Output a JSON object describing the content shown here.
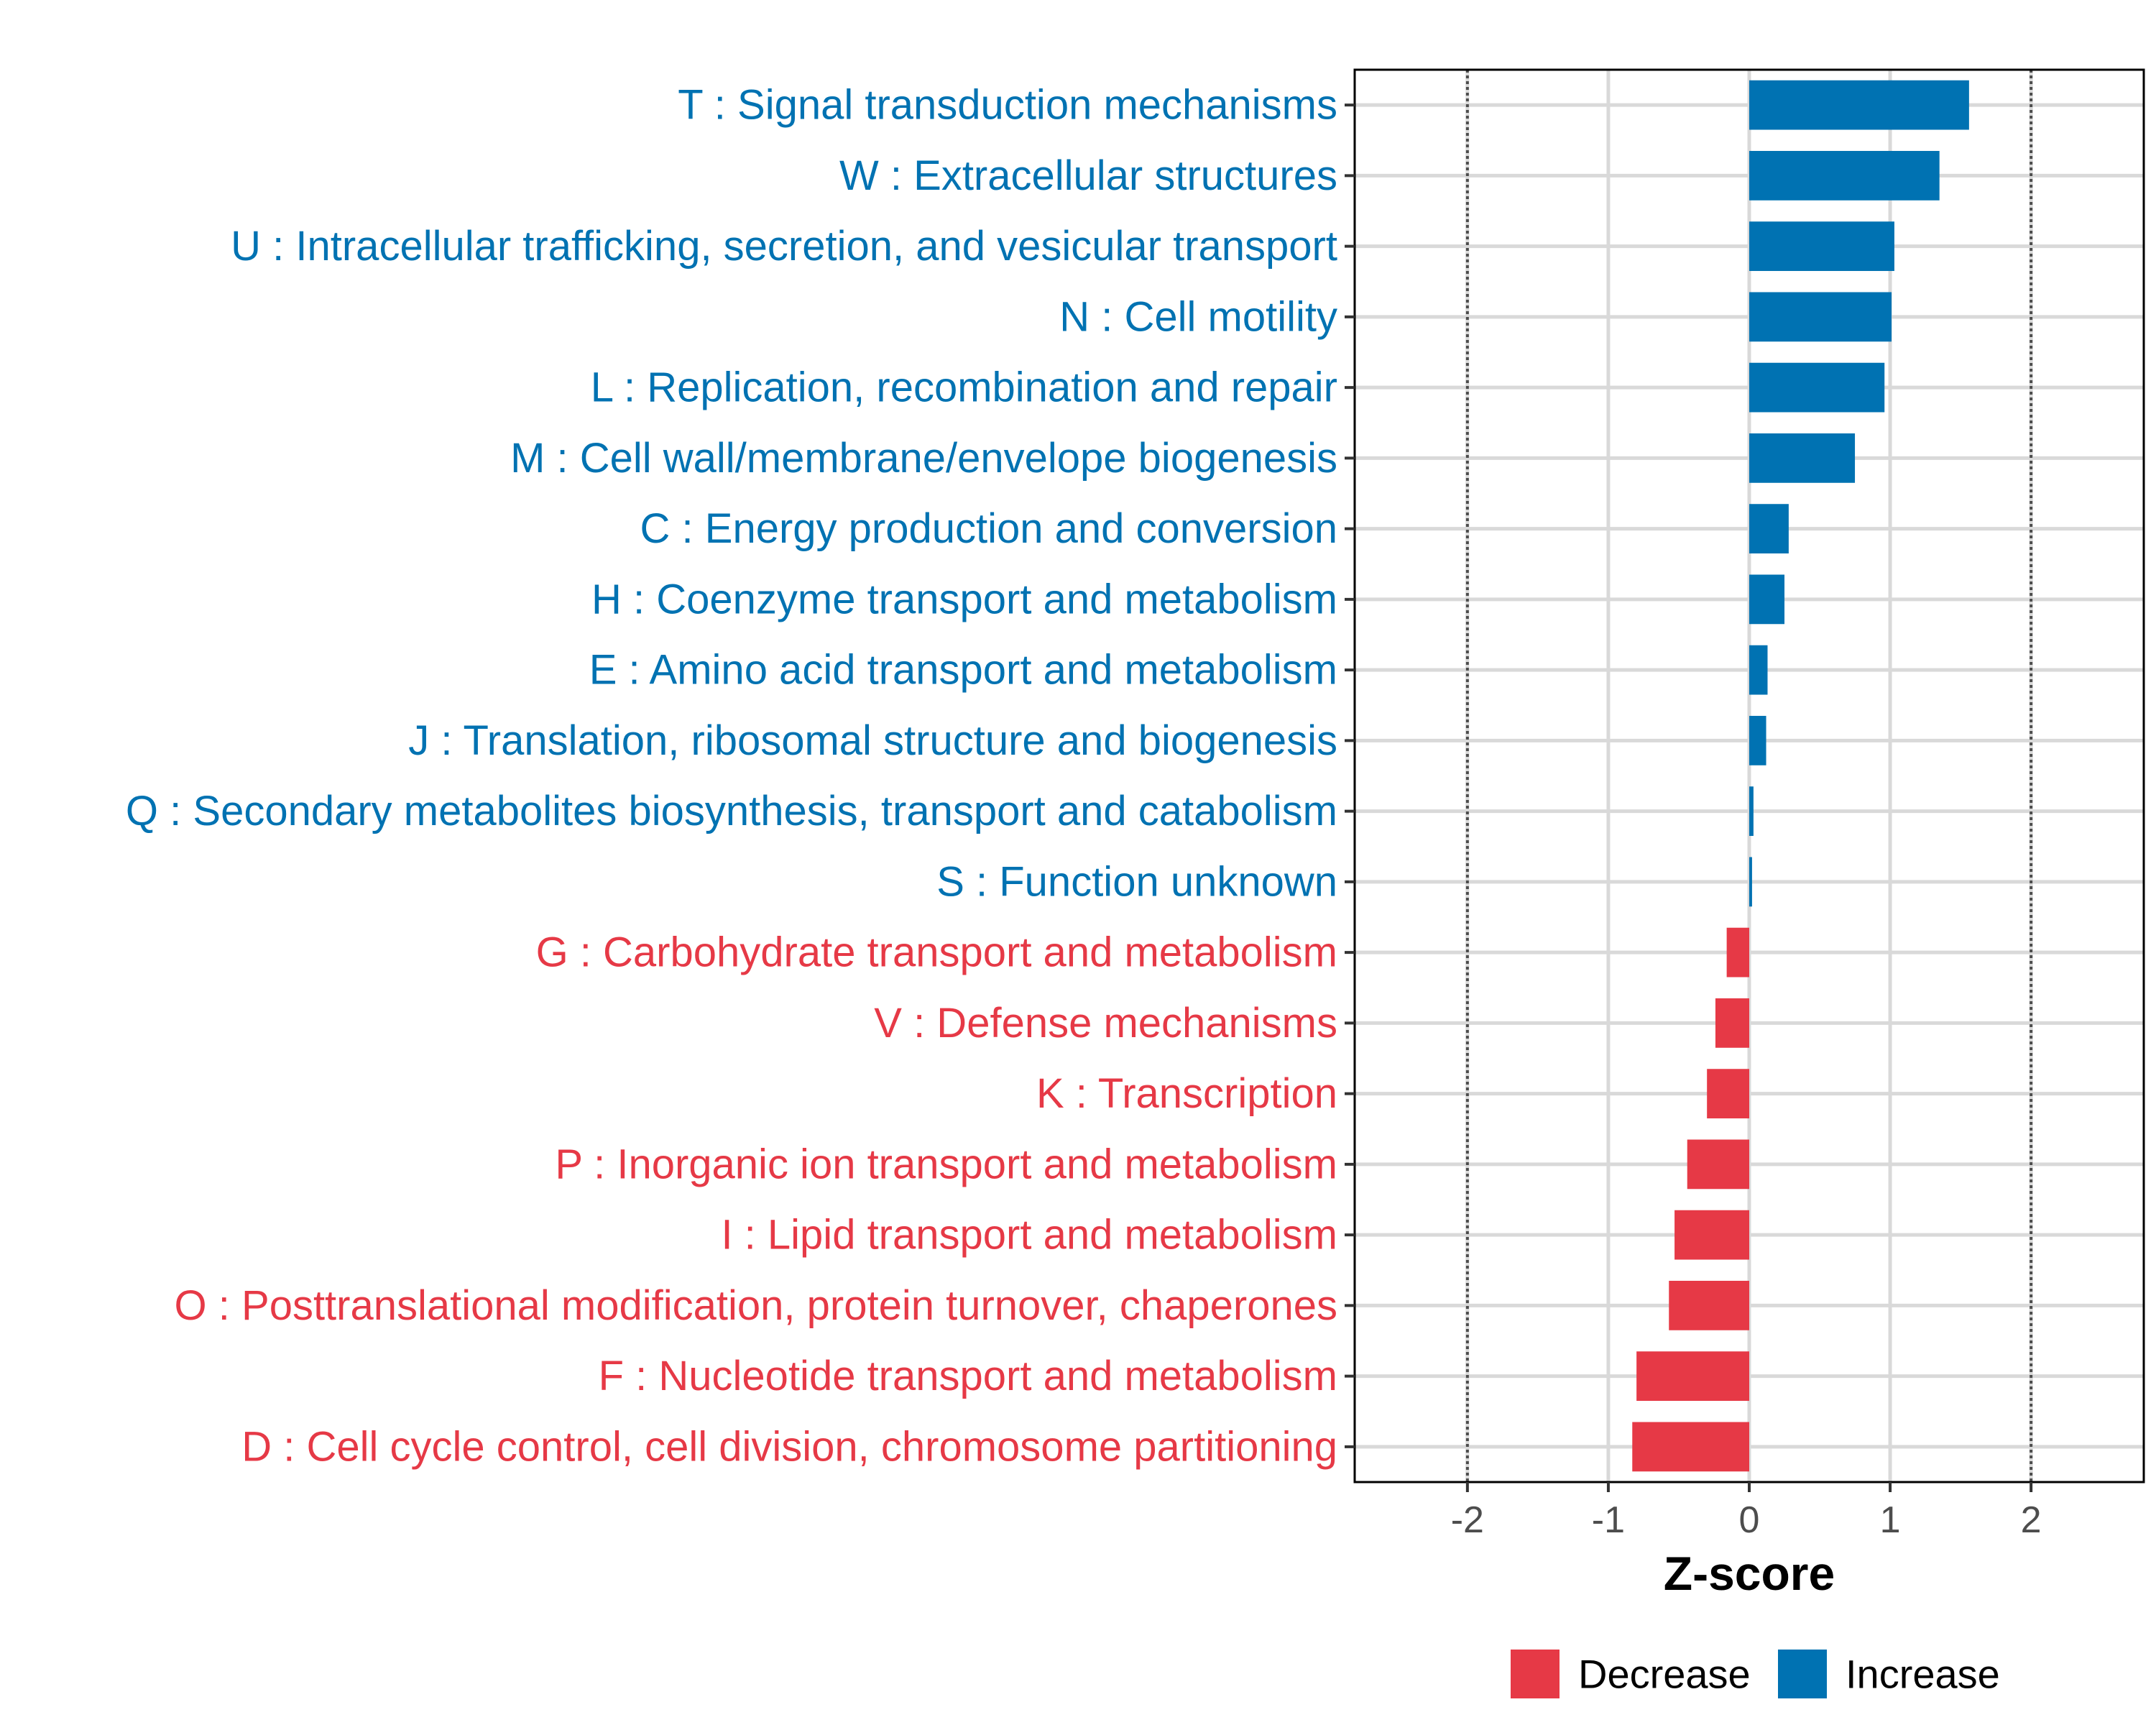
{
  "colors": {
    "increase": "#0072B2",
    "decrease": "#E63946",
    "grid": "#d9d9d9",
    "panel_border": "#000000",
    "threshold_line": "#4d4d4d"
  },
  "chart_data": {
    "type": "bar",
    "orientation": "horizontal",
    "xlabel": "Z-score",
    "xlim": [
      -2.8,
      2.8
    ],
    "x_ticks": [
      -2,
      -1,
      0,
      1,
      2
    ],
    "x_tick_labels": [
      "-2",
      "-1",
      "0",
      "1",
      "2"
    ],
    "threshold_lines": [
      -2,
      2
    ],
    "grid": true,
    "categories": [
      "T : Signal transduction mechanisms",
      "W : Extracellular structures",
      "U : Intracellular trafficking, secretion, and vesicular transport",
      "N : Cell motility",
      "L : Replication, recombination and repair",
      "M : Cell wall/membrane/envelope biogenesis",
      "C : Energy production and conversion",
      "H : Coenzyme transport and metabolism",
      "E : Amino acid transport and metabolism",
      "J : Translation, ribosomal structure and biogenesis",
      "Q : Secondary metabolites biosynthesis, transport and catabolism",
      "S : Function unknown",
      "G : Carbohydrate transport and metabolism",
      "V : Defense mechanisms",
      "K : Transcription",
      "P : Inorganic ion transport and metabolism",
      "I : Lipid transport and metabolism",
      "O : Posttranslational modification, protein turnover, chaperones",
      "F : Nucleotide transport and metabolism",
      "D : Cell cycle control, cell division, chromosome partitioning"
    ],
    "values": [
      1.56,
      1.35,
      1.03,
      1.01,
      0.96,
      0.75,
      0.28,
      0.25,
      0.13,
      0.12,
      0.03,
      0.02,
      -0.16,
      -0.24,
      -0.3,
      -0.44,
      -0.53,
      -0.57,
      -0.8,
      -0.83
    ],
    "groups": [
      "Increase",
      "Increase",
      "Increase",
      "Increase",
      "Increase",
      "Increase",
      "Increase",
      "Increase",
      "Increase",
      "Increase",
      "Increase",
      "Increase",
      "Decrease",
      "Decrease",
      "Decrease",
      "Decrease",
      "Decrease",
      "Decrease",
      "Decrease",
      "Decrease"
    ],
    "legend": {
      "position": "bottom",
      "entries": [
        {
          "label": "Decrease",
          "color": "#E63946"
        },
        {
          "label": "Increase",
          "color": "#0072B2"
        }
      ]
    }
  }
}
